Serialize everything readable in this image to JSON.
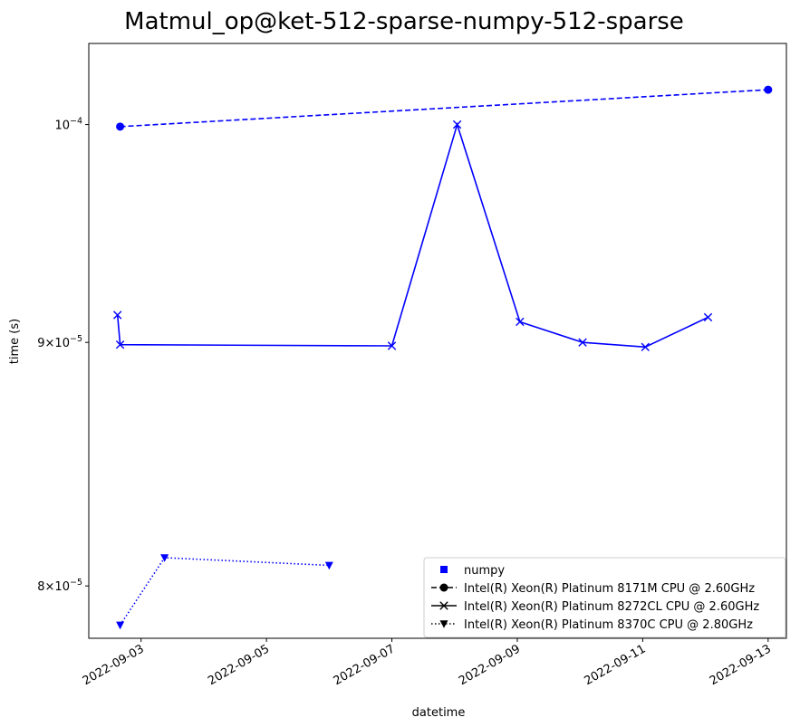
{
  "chart_data": {
    "type": "line",
    "title": "Matmul_op@ket-512-sparse-numpy-512-sparse",
    "xlabel": "datetime",
    "ylabel": "time (s)",
    "y_scale": "log",
    "xlim": [
      "2022-09-02T04:00",
      "2022-09-13T07:00"
    ],
    "ylim": [
      7.8e-05,
      0.000104
    ],
    "x_ticks": [
      "2022-09-03",
      "2022-09-05",
      "2022-09-07",
      "2022-09-09",
      "2022-09-11",
      "2022-09-13"
    ],
    "y_ticks": [
      {
        "value": 0.0001,
        "base": "10",
        "exp": "−4"
      },
      {
        "value": 9e-05,
        "base": "9×10",
        "exp": "−5"
      },
      {
        "value": 8e-05,
        "base": "8×10",
        "exp": "−5"
      }
    ],
    "grid": false,
    "legend_position": "bottom-right",
    "color": "#0000ff",
    "legend": [
      {
        "label": "numpy",
        "marker": "square",
        "line": "none"
      },
      {
        "label": "Intel(R) Xeon(R) Platinum 8171M CPU @ 2.60GHz",
        "marker": "circle",
        "line": "dashed"
      },
      {
        "label": "Intel(R) Xeon(R) Platinum 8272CL CPU @ 2.60GHz",
        "marker": "x",
        "line": "solid"
      },
      {
        "label": "Intel(R) Xeon(R) Platinum 8370C CPU @ 2.80GHz",
        "marker": "triangle-down",
        "line": "dotted"
      }
    ],
    "series": [
      {
        "name": "Intel(R) Xeon(R) Platinum 8171M CPU @ 2.60GHz",
        "marker": "circle",
        "line": "dashed",
        "x": [
          "2022-09-02T16:00",
          "2022-09-13T00:00"
        ],
        "y": [
          9.99e-05,
          0.0001017
        ]
      },
      {
        "name": "Intel(R) Xeon(R) Platinum 8272CL CPU @ 2.60GHz",
        "marker": "x",
        "line": "solid",
        "x": [
          "2022-09-02T15:00",
          "2022-09-02T16:00",
          "2022-09-07T00:00",
          "2022-09-08T01:00",
          "2022-09-09T01:00",
          "2022-09-10T01:00",
          "2022-09-11T01:00",
          "2022-09-12T01:00"
        ],
        "y": [
          9.12e-05,
          8.99e-05,
          8.985e-05,
          0.0001,
          9.09e-05,
          9e-05,
          8.98e-05,
          9.11e-05
        ]
      },
      {
        "name": "Intel(R) Xeon(R) Platinum 8370C CPU @ 2.80GHz",
        "marker": "triangle-down",
        "line": "dotted",
        "x": [
          "2022-09-02T16:00",
          "2022-09-03T09:00",
          "2022-09-06T00:00"
        ],
        "y": [
          7.85e-05,
          8.11e-05,
          8.08e-05
        ]
      }
    ]
  }
}
